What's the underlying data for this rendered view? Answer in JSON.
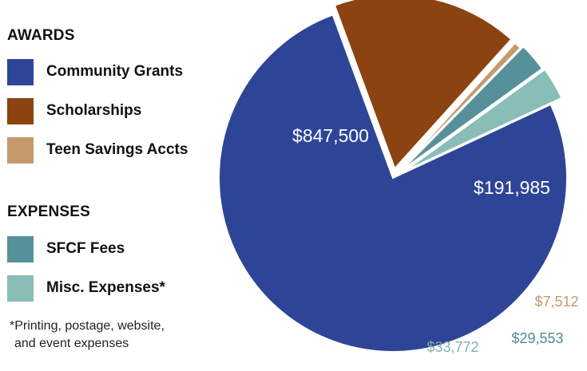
{
  "chart_data": {
    "type": "pie",
    "legend": {
      "groups": [
        {
          "title": "AWARDS",
          "items": [
            {
              "label": "Community Grants",
              "color": "#2e4597"
            },
            {
              "label": "Scholarships",
              "color": "#8b4312"
            },
            {
              "label": "Teen Savings Accts",
              "color": "#c49a6c"
            }
          ]
        },
        {
          "title": "EXPENSES",
          "items": [
            {
              "label": "SFCF Fees",
              "color": "#56919a"
            },
            {
              "label": "Misc. Expenses*",
              "color": "#89bdb8"
            }
          ]
        }
      ],
      "footnote": [
        "*Printing, postage, website,",
        "and event expenses"
      ]
    },
    "slices": [
      {
        "name": "Community Grants",
        "value": 847500,
        "label": "$847,500",
        "color": "#2e4597",
        "label_color": "#ffffff"
      },
      {
        "name": "Scholarships",
        "value": 191985,
        "label": "$191,985",
        "color": "#8b4312",
        "label_color": "#ffffff"
      },
      {
        "name": "Teen Savings Accts",
        "value": 7512,
        "label": "$7,512",
        "color": "#c49a6c",
        "label_color": "#c49a6c"
      },
      {
        "name": "SFCF Fees",
        "value": 29553,
        "label": "$29,553",
        "color": "#56919a",
        "label_color": "#4f8a93"
      },
      {
        "name": "Misc. Expenses*",
        "value": 33772,
        "label": "$33,772",
        "color": "#89bdb8",
        "label_color": "#7db3ad"
      }
    ]
  }
}
